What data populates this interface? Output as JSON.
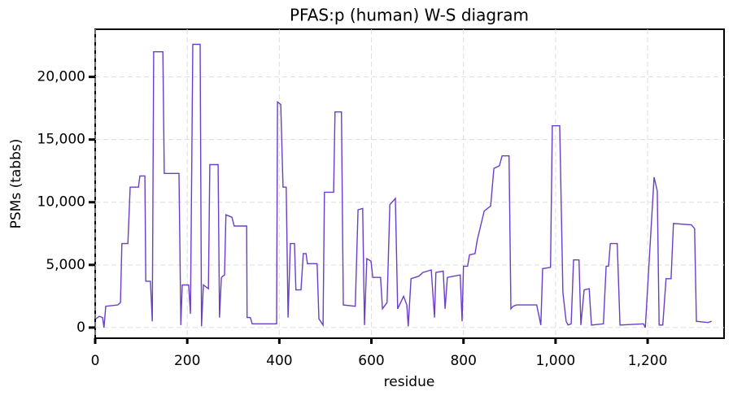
{
  "chart_data": {
    "type": "line",
    "title": "PFAS:p (human) W-S diagram",
    "xlabel": "residue",
    "ylabel": "PSMs (tabbs)",
    "xlim": [
      0,
      1366
    ],
    "ylim": [
      -850,
      23800
    ],
    "xticks": [
      0,
      200,
      400,
      600,
      800,
      {
        "value": 1000,
        "label": "1,000"
      },
      {
        "value": 1200,
        "label": "1,200"
      }
    ],
    "yticks": [
      0,
      {
        "value": 5000,
        "label": "5,000"
      },
      {
        "value": 10000,
        "label": "10,000"
      },
      {
        "value": 15000,
        "label": "15,000"
      },
      {
        "value": 20000,
        "label": "20,000"
      }
    ],
    "grid": true,
    "x": [
      2,
      9,
      16,
      19,
      23,
      49,
      55,
      58,
      71,
      76,
      94,
      97,
      108,
      110,
      120,
      124,
      127,
      147,
      150,
      182,
      186,
      189,
      203,
      207,
      212,
      228,
      231,
      235,
      246,
      249,
      267,
      270,
      274,
      281,
      284,
      297,
      302,
      329,
      330,
      337,
      341,
      394,
      396,
      403,
      408,
      415,
      419,
      424,
      433,
      436,
      447,
      452,
      458,
      461,
      482,
      486,
      495,
      498,
      518,
      521,
      535,
      539,
      565,
      571,
      581,
      585,
      590,
      599,
      603,
      620,
      624,
      634,
      640,
      652,
      657,
      670,
      677,
      680,
      686,
      703,
      712,
      730,
      737,
      740,
      756,
      760,
      765,
      793,
      797,
      800,
      809,
      813,
      825,
      830,
      845,
      859,
      866,
      878,
      884,
      899,
      903,
      908,
      915,
      959,
      968,
      972,
      989,
      993,
      1009,
      1016,
      1023,
      1027,
      1034,
      1039,
      1051,
      1055,
      1062,
      1073,
      1078,
      1104,
      1110,
      1115,
      1119,
      1134,
      1140,
      1191,
      1195,
      1214,
      1221,
      1225,
      1233,
      1240,
      1251,
      1256,
      1295,
      1302,
      1306,
      1331,
      1339
    ],
    "series": [
      {
        "name": "PSMs",
        "color": "#6a3ec8",
        "values": [
          700,
          900,
          800,
          0,
          1700,
          1800,
          2000,
          6700,
          6700,
          11200,
          11200,
          12100,
          12100,
          3700,
          3700,
          500,
          22000,
          22000,
          12300,
          12300,
          200,
          3400,
          3400,
          1100,
          22600,
          22600,
          100,
          3400,
          3100,
          13000,
          13000,
          800,
          4000,
          4200,
          9000,
          8800,
          8100,
          8100,
          800,
          800,
          300,
          300,
          18000,
          17800,
          11200,
          11200,
          800,
          6700,
          6700,
          3000,
          3000,
          5900,
          5900,
          5100,
          5100,
          700,
          200,
          10800,
          10800,
          17200,
          17200,
          1800,
          1700,
          9400,
          9500,
          200,
          5500,
          5300,
          4000,
          4000,
          1500,
          2000,
          9800,
          10300,
          1500,
          2500,
          1800,
          100,
          3900,
          4100,
          4400,
          4600,
          800,
          4400,
          4500,
          1500,
          4000,
          4200,
          500,
          4900,
          4900,
          5800,
          5900,
          7000,
          9300,
          9700,
          12700,
          12900,
          13700,
          13700,
          1500,
          1700,
          1800,
          1800,
          200,
          4700,
          4800,
          16100,
          16100,
          2800,
          500,
          200,
          300,
          5400,
          5400,
          200,
          3000,
          3100,
          200,
          300,
          4900,
          4900,
          6700,
          6700,
          200,
          300,
          0,
          12000,
          10900,
          200,
          200,
          3900,
          3900,
          8300,
          8200,
          7900,
          500,
          400,
          500
        ]
      }
    ]
  }
}
